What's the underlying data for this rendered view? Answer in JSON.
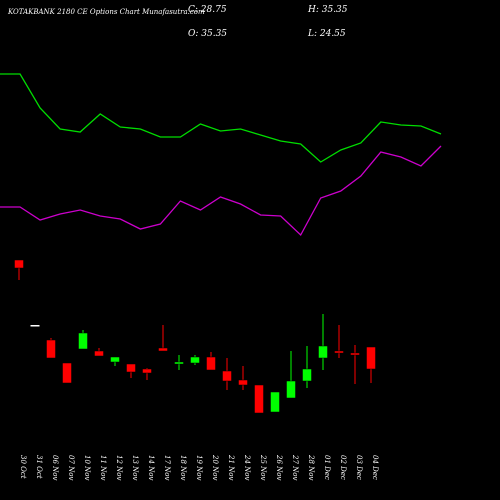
{
  "chart_data": {
    "type": "candlestick",
    "title": "KOTAKBANK 2180 CE Options Chart Munafasutra.com",
    "summary": [
      "C: 28.75",
      "H: 35.35",
      "O: 35.35",
      "L: 24.55"
    ],
    "categories": [
      "30 Oct",
      "31 Oct",
      "06 Nov",
      "07 Nov",
      "10 Nov",
      "11 Nov",
      "12 Nov",
      "13 Nov",
      "14 Nov",
      "17 Nov",
      "18 Nov",
      "19 Nov",
      "20 Nov",
      "21 Nov",
      "24 Nov",
      "25 Nov",
      "26 Nov",
      "27 Nov",
      "28 Nov",
      "01 Dec",
      "02 Dec",
      "03 Dec",
      "04 Dec"
    ],
    "open": [
      61.45,
      41.95,
      37.45,
      30.55,
      34.75,
      34.15,
      30.85,
      30.25,
      28.75,
      35.05,
      30.25,
      30.55,
      32.35,
      28.15,
      25.45,
      23.95,
      15.85,
      20.05,
      25.15,
      32.05,
      34.15,
      33.55,
      35.35
    ],
    "high": [
      61.45,
      41.95,
      38.05,
      30.55,
      40.45,
      35.05,
      32.35,
      30.25,
      29.05,
      41.95,
      32.95,
      32.95,
      33.85,
      32.05,
      29.65,
      23.95,
      21.85,
      34.15,
      35.65,
      45.25,
      41.95,
      35.95,
      35.35
    ],
    "low": [
      55.45,
      41.95,
      32.05,
      24.55,
      34.75,
      32.65,
      29.65,
      26.05,
      25.45,
      34.15,
      28.45,
      29.95,
      28.45,
      22.45,
      22.45,
      15.55,
      15.85,
      20.05,
      23.05,
      28.45,
      32.05,
      24.25,
      24.55
    ],
    "close": [
      59.05,
      41.95,
      32.05,
      24.55,
      39.55,
      32.65,
      32.35,
      27.85,
      27.55,
      34.15,
      30.85,
      32.35,
      28.45,
      25.15,
      23.95,
      15.55,
      21.85,
      25.15,
      28.75,
      35.65,
      33.55,
      32.95,
      28.75
    ],
    "up_color": "#00ff00",
    "down_color": "#ff0000",
    "series": [
      {
        "color": "#00dd00",
        "values": [
          117.25,
          117.25,
          107.05,
          100.75,
          99.85,
          105.25,
          101.35,
          100.75,
          98.35,
          98.35,
          102.25,
          100.15,
          100.75,
          98.95,
          97.15,
          96.25,
          90.85,
          94.45,
          96.55,
          102.85,
          101.95,
          101.65,
          99.25
        ]
      },
      {
        "color": "#cc00cc",
        "values": [
          77.35,
          77.35,
          73.45,
          75.25,
          76.45,
          74.65,
          73.75,
          70.75,
          72.25,
          79.15,
          76.45,
          80.35,
          78.25,
          74.95,
          74.65,
          68.95,
          80.05,
          82.15,
          86.65,
          93.85,
          92.35,
          89.65,
          95.65
        ]
      }
    ],
    "ylim": [
      -10.55,
      139.45
    ]
  }
}
